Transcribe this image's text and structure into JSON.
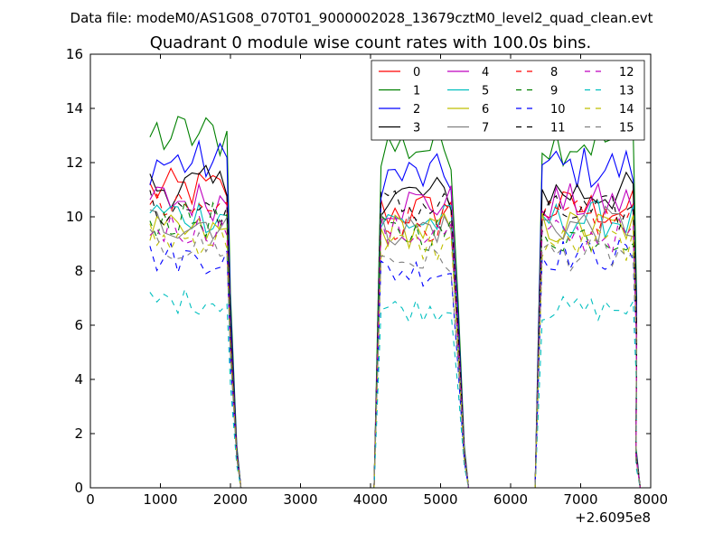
{
  "suptitle": "Data file: modeM0/AS1G08_070T01_9000002028_13679cztM0_level2_quad_clean.evt",
  "chart_data": {
    "type": "line",
    "title": "Quadrant 0 module wise count rates with 100.0s bins.",
    "xlabel": "",
    "ylabel": "",
    "x_offset_label": "+2.6095e8",
    "xlim": [
      0,
      8000
    ],
    "ylim": [
      0,
      16
    ],
    "xticks": [
      0,
      1000,
      2000,
      3000,
      4000,
      5000,
      6000,
      7000,
      8000
    ],
    "yticks": [
      0,
      2,
      4,
      6,
      8,
      10,
      12,
      14,
      16
    ],
    "grid": false,
    "legend_position": "top-right",
    "series": [
      {
        "name": "0",
        "color": "#ff0000",
        "dash": "solid",
        "seg_means": [
          11.0,
          10.2,
          10.3
        ]
      },
      {
        "name": "1",
        "color": "#008000",
        "dash": "solid",
        "seg_means": [
          13.0,
          12.6,
          12.8
        ]
      },
      {
        "name": "2",
        "color": "#0000ff",
        "dash": "solid",
        "seg_means": [
          12.0,
          11.5,
          11.8
        ]
      },
      {
        "name": "3",
        "color": "#000000",
        "dash": "solid",
        "seg_means": [
          11.1,
          10.8,
          10.9
        ]
      },
      {
        "name": "4",
        "color": "#bf00bf",
        "dash": "solid",
        "seg_means": [
          10.6,
          10.5,
          10.5
        ]
      },
      {
        "name": "5",
        "color": "#00bfbf",
        "dash": "solid",
        "seg_means": [
          10.1,
          9.8,
          9.9
        ]
      },
      {
        "name": "6",
        "color": "#bfbf00",
        "dash": "solid",
        "seg_means": [
          9.4,
          9.5,
          9.6
        ]
      },
      {
        "name": "7",
        "color": "#808080",
        "dash": "solid",
        "seg_means": [
          9.8,
          9.6,
          9.7
        ]
      },
      {
        "name": "8",
        "color": "#ff0000",
        "dash": "dashed",
        "seg_means": [
          10.2,
          9.8,
          9.9
        ]
      },
      {
        "name": "9",
        "color": "#008000",
        "dash": "dashed",
        "seg_means": [
          9.9,
          9.4,
          9.3
        ]
      },
      {
        "name": "10",
        "color": "#0000ff",
        "dash": "dashed",
        "seg_means": [
          8.5,
          8.0,
          8.6
        ]
      },
      {
        "name": "11",
        "color": "#000000",
        "dash": "dashed",
        "seg_means": [
          10.3,
          10.4,
          10.1
        ]
      },
      {
        "name": "12",
        "color": "#bf00bf",
        "dash": "dashed",
        "seg_means": [
          9.6,
          9.4,
          9.3
        ]
      },
      {
        "name": "13",
        "color": "#00bfbf",
        "dash": "dashed",
        "seg_means": [
          6.9,
          6.6,
          6.6
        ]
      },
      {
        "name": "14",
        "color": "#bfbf00",
        "dash": "dashed",
        "seg_means": [
          9.2,
          8.9,
          9.0
        ]
      },
      {
        "name": "15",
        "color": "#808080",
        "dash": "dashed",
        "seg_means": [
          8.9,
          8.4,
          8.6
        ]
      }
    ],
    "segments": [
      {
        "start": 850,
        "end": 1950,
        "drop_end": 2150
      },
      {
        "start": 4150,
        "end": 5200,
        "drop_end": 5400
      },
      {
        "start": 6450,
        "end": 7750,
        "drop_end": 7850
      }
    ],
    "bin_width": 100
  }
}
